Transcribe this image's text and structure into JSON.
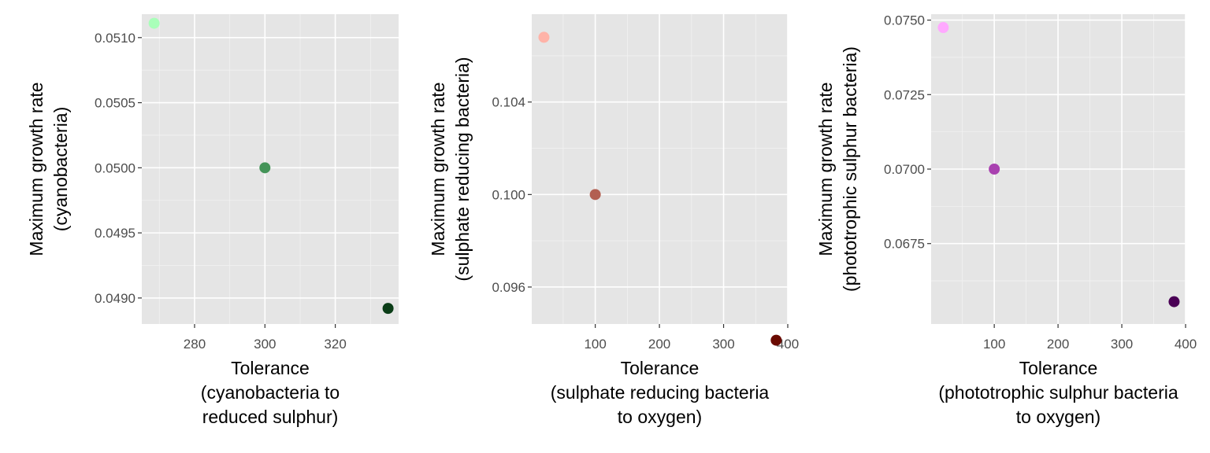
{
  "chart_data": [
    {
      "type": "scatter",
      "xlabel": [
        "Tolerance",
        "(cyanobacteria to",
        "reduced sulphur)"
      ],
      "ylabel": [
        "Maximum growth rate",
        "(cyanobacteria)"
      ],
      "xlim": [
        265,
        338
      ],
      "ylim": [
        0.0488,
        0.05118
      ],
      "xticks": [
        280,
        300,
        320
      ],
      "xtick_labels": [
        "280",
        "300",
        "320"
      ],
      "yticks": [
        0.049,
        0.0495,
        0.05,
        0.0505,
        0.051
      ],
      "ytick_labels": [
        "0.0490",
        "0.0495",
        "0.0500",
        "0.0505",
        "0.0510"
      ],
      "grid": true,
      "points": [
        {
          "x": 268.5,
          "y": 0.05111,
          "color": "#a9ffb9"
        },
        {
          "x": 300,
          "y": 0.05,
          "color": "#449458"
        },
        {
          "x": 335,
          "y": 0.04892,
          "color": "#0b3d17"
        }
      ]
    },
    {
      "type": "scatter",
      "xlabel": [
        "Tolerance",
        "(sulphate reducing bacteria",
        "to oxygen)"
      ],
      "ylabel": [
        "Maximum growth rate",
        "(sulphate reducing bacteria)"
      ],
      "xlim": [
        1,
        400
      ],
      "ylim": [
        0.0944,
        0.1078
      ],
      "xticks": [
        100,
        200,
        300,
        400
      ],
      "xtick_labels": [
        "100",
        "200",
        "300",
        "400"
      ],
      "yticks": [
        0.096,
        0.1,
        0.104
      ],
      "ytick_labels": [
        "0.096",
        "0.100",
        "0.104"
      ],
      "grid": true,
      "points": [
        {
          "x": 20,
          "y": 0.1068,
          "color": "#ffb3a8"
        },
        {
          "x": 100,
          "y": 0.1,
          "color": "#b25f51"
        },
        {
          "x": 382,
          "y": 0.0937,
          "color": "#6a0a00"
        }
      ]
    },
    {
      "type": "scatter",
      "xlabel": [
        "Tolerance",
        "(phototrophic sulphur bacteria",
        "to oxygen)"
      ],
      "ylabel": [
        "Maximum growth rate",
        "(phototrophic sulphur bacteria)"
      ],
      "xlim": [
        1,
        400
      ],
      "ylim": [
        0.0648,
        0.0752
      ],
      "xticks": [
        100,
        200,
        300,
        400
      ],
      "xtick_labels": [
        "100",
        "200",
        "300",
        "400"
      ],
      "yticks": [
        0.0675,
        0.07,
        0.0725,
        0.075
      ],
      "ytick_labels": [
        "0.0675",
        "0.0700",
        "0.0725",
        "0.0750"
      ],
      "grid": true,
      "points": [
        {
          "x": 20,
          "y": 0.07475,
          "color": "#ffa9ff"
        },
        {
          "x": 100,
          "y": 0.07,
          "color": "#a941b0"
        },
        {
          "x": 382,
          "y": 0.06555,
          "color": "#4a0055"
        }
      ]
    }
  ]
}
